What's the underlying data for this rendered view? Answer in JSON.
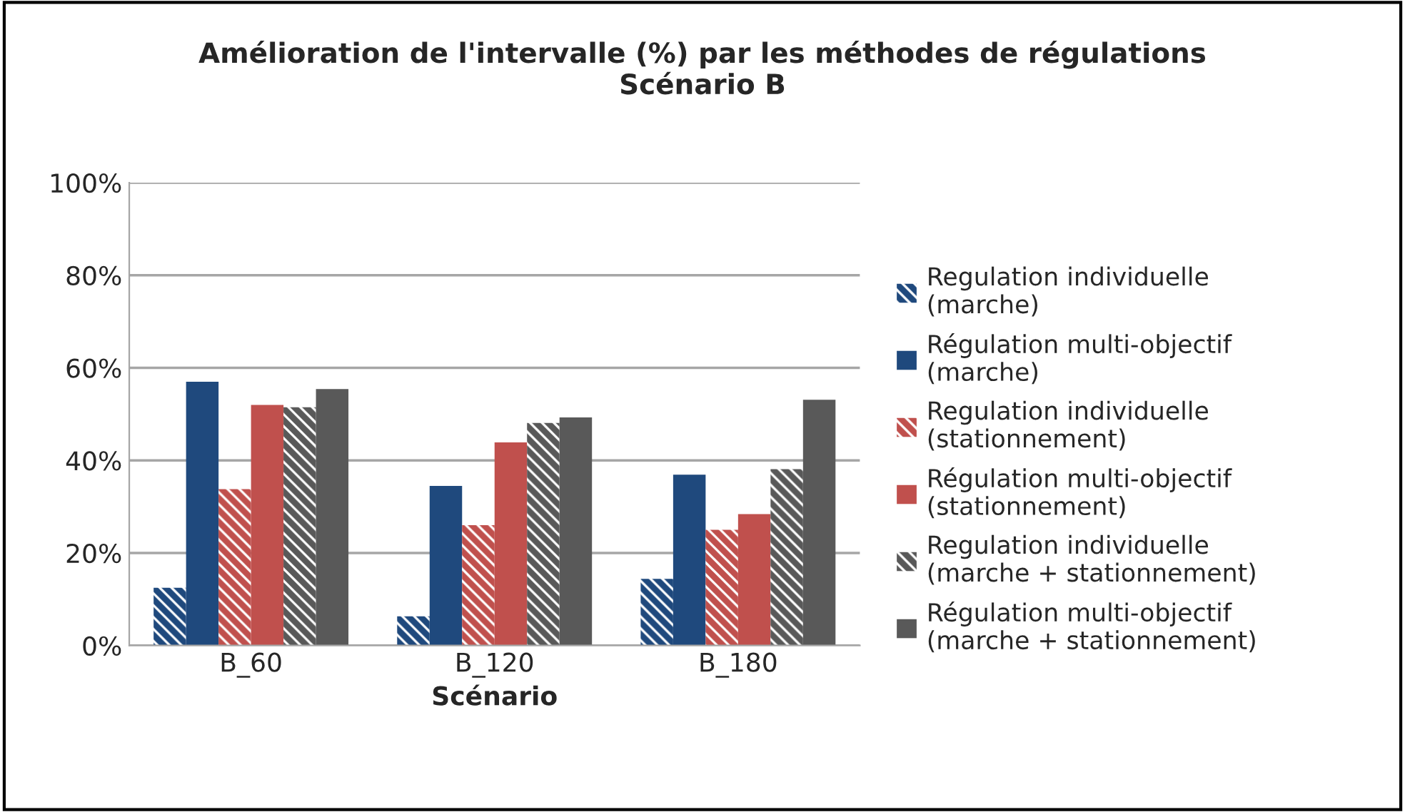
{
  "chart_data": {
    "type": "bar",
    "title": "Amélioration de l'intervalle (%) par les méthodes de régulations\nScénario B",
    "xlabel": "Scénario",
    "categories": [
      "B_60",
      "B_120",
      "B_180"
    ],
    "series": [
      {
        "name": "Regulation individuelle\n(marche)",
        "color": "#1f497d",
        "values": [
          12.5,
          6.3,
          14.4
        ]
      },
      {
        "name": "Régulation multi-objectif\n(marche)",
        "color": "#1f497d",
        "values": [
          57,
          34.5,
          36.9
        ]
      },
      {
        "name": "Regulation individuelle\n(stationnement)",
        "color": "#c0504d",
        "values": [
          33.8,
          26,
          25
        ]
      },
      {
        "name": "Régulation multi-objectif\n(stationnement)",
        "color": "#c0504d",
        "values": [
          52,
          43.9,
          28.4
        ]
      },
      {
        "name": "Regulation individuelle\n(marche + stationnement)",
        "color": "#595959",
        "values": [
          51.5,
          48.1,
          38.1
        ]
      },
      {
        "name": "Régulation multi-objectif\n(marche + stationnement)",
        "color": "#595959",
        "values": [
          55.4,
          49.3,
          53.1
        ]
      }
    ],
    "ylim": [
      0,
      100
    ],
    "yticks": [
      {
        "value": 0,
        "label": "0%"
      },
      {
        "value": 20,
        "label": "20%"
      },
      {
        "value": 40,
        "label": "40%"
      },
      {
        "value": 60,
        "label": "60%"
      },
      {
        "value": 80,
        "label": "80%"
      },
      {
        "value": 100,
        "label": "100%"
      }
    ],
    "grid": "y",
    "legend": "right"
  }
}
